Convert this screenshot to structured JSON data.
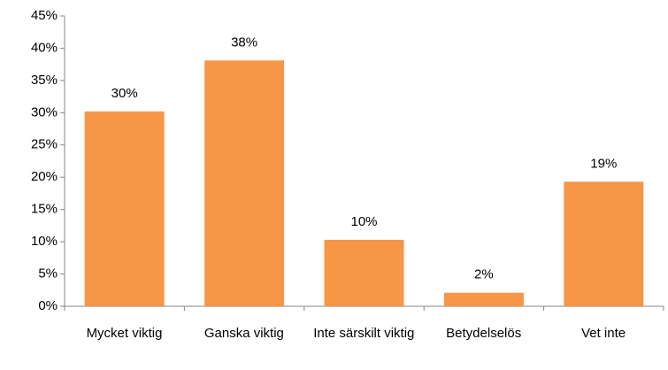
{
  "chart_data": {
    "type": "bar",
    "categories": [
      "Mycket viktig",
      "Ganska viktig",
      "Inte särskilt viktig",
      "Betydelselös",
      "Vet inte"
    ],
    "values": [
      30.2,
      38.1,
      10.3,
      2.1,
      19.3
    ],
    "value_labels": [
      "30%",
      "38%",
      "10%",
      "2%",
      "19%"
    ],
    "color": "#f79646",
    "ylim": [
      0,
      45
    ],
    "yticks": [
      {
        "value": 0,
        "label": "0%"
      },
      {
        "value": 5,
        "label": "5%"
      },
      {
        "value": 10,
        "label": "10%"
      },
      {
        "value": 15,
        "label": "15%"
      },
      {
        "value": 20,
        "label": "20%"
      },
      {
        "value": 25,
        "label": "25%"
      },
      {
        "value": 30,
        "label": "30%"
      },
      {
        "value": 35,
        "label": "35%"
      },
      {
        "value": 40,
        "label": "40%"
      },
      {
        "value": 45,
        "label": "45%"
      }
    ],
    "grid": false
  }
}
